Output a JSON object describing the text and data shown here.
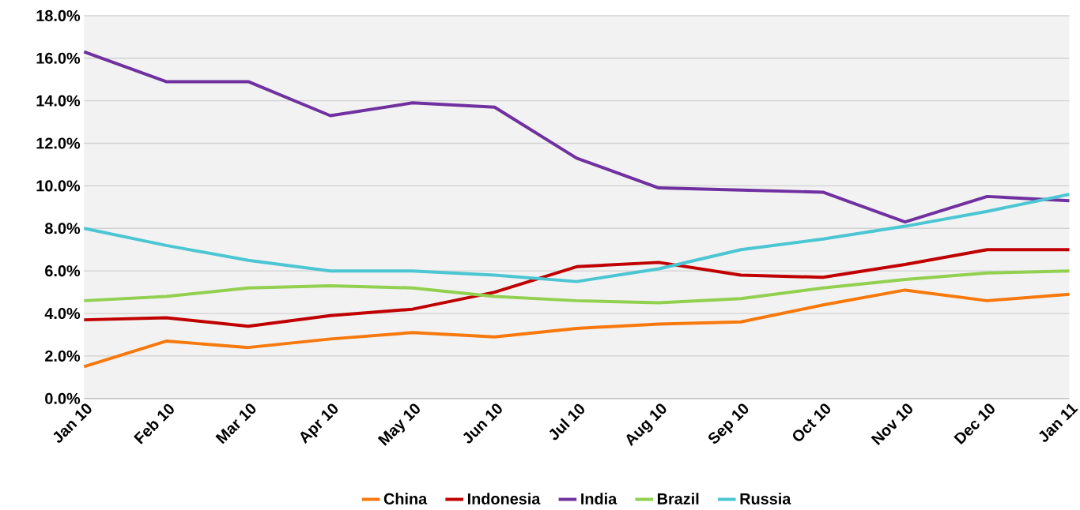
{
  "chart_data": {
    "type": "line",
    "categories": [
      "Jan 10",
      "Feb 10",
      "Mar 10",
      "Apr 10",
      "May 10",
      "Jun 10",
      "Jul 10",
      "Aug 10",
      "Sep 10",
      "Oct 10",
      "Nov 10",
      "Dec 10",
      "Jan 11"
    ],
    "series": [
      {
        "name": "China",
        "color": "#f7790d",
        "values": [
          1.5,
          2.7,
          2.4,
          2.8,
          3.1,
          2.9,
          3.3,
          3.5,
          3.6,
          4.4,
          5.1,
          4.6,
          4.9
        ]
      },
      {
        "name": "Indonesia",
        "color": "#c00000",
        "values": [
          3.7,
          3.8,
          3.4,
          3.9,
          4.2,
          5.0,
          6.2,
          6.4,
          5.8,
          5.7,
          6.3,
          7.0,
          7.0
        ]
      },
      {
        "name": "India",
        "color": "#7030a0",
        "values": [
          16.3,
          14.9,
          14.9,
          13.3,
          13.9,
          13.7,
          11.3,
          9.9,
          9.8,
          9.7,
          8.3,
          9.5,
          9.3
        ]
      },
      {
        "name": "Brazil",
        "color": "#92d050",
        "values": [
          4.6,
          4.8,
          5.2,
          5.3,
          5.2,
          4.8,
          4.6,
          4.5,
          4.7,
          5.2,
          5.6,
          5.9,
          6.0
        ]
      },
      {
        "name": "Russia",
        "color": "#4bc6d2",
        "values": [
          8.0,
          7.2,
          6.5,
          6.0,
          6.0,
          5.8,
          5.5,
          6.1,
          7.0,
          7.5,
          8.1,
          8.8,
          9.6
        ]
      }
    ],
    "ylim": [
      0,
      18
    ],
    "yticks": [
      {
        "value": 0,
        "label": "0.0%"
      },
      {
        "value": 2,
        "label": "2.0%"
      },
      {
        "value": 4,
        "label": "4.0%"
      },
      {
        "value": 6,
        "label": "6.0%"
      },
      {
        "value": 8,
        "label": "8.0%"
      },
      {
        "value": 10,
        "label": "10.0%"
      },
      {
        "value": 12,
        "label": "12.0%"
      },
      {
        "value": 14,
        "label": "14.0%"
      },
      {
        "value": 16,
        "label": "16.0%"
      },
      {
        "value": 18,
        "label": "18.0%"
      }
    ],
    "grid": "y",
    "legend": "bottom",
    "marker": "none",
    "line_style": "solid"
  }
}
